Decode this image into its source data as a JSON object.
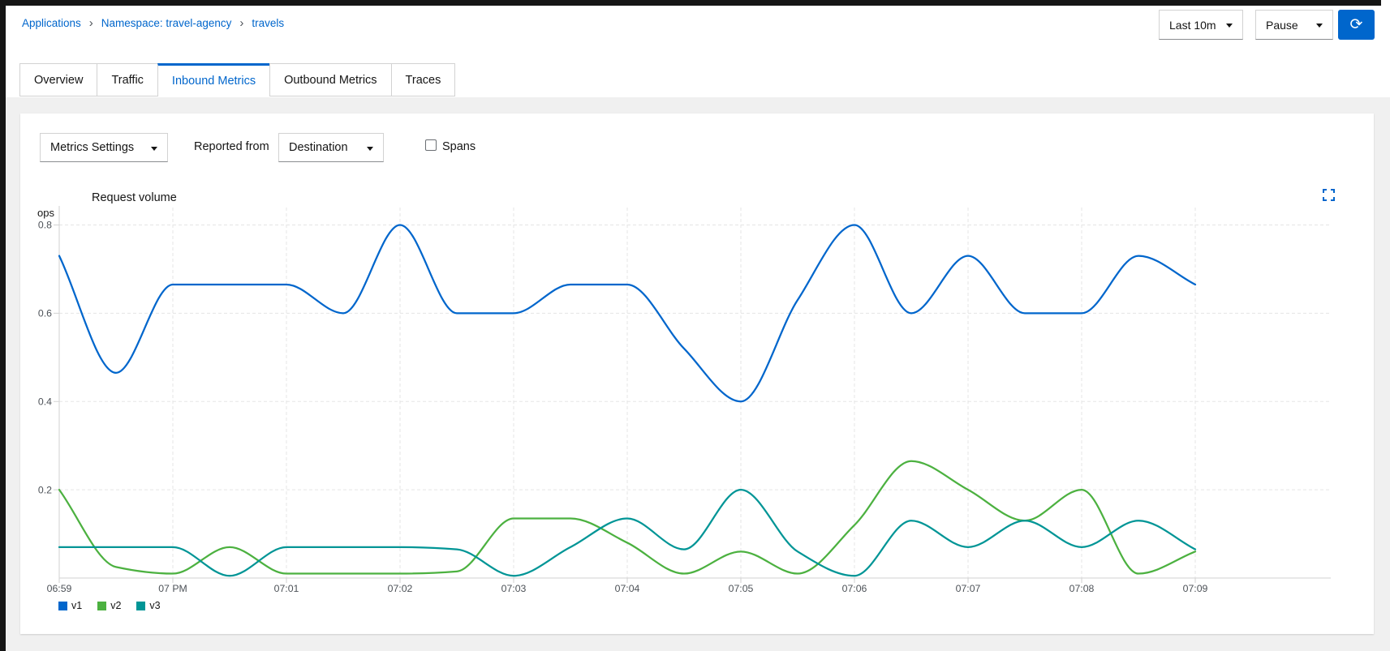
{
  "breadcrumb": {
    "separator": "›",
    "items": [
      {
        "label": "Applications"
      },
      {
        "label": "Namespace: travel-agency"
      },
      {
        "label": "travels"
      }
    ]
  },
  "toolbar": {
    "duration_value": "Last 10m",
    "refresh_mode_value": "Pause"
  },
  "tabs": [
    {
      "label": "Overview",
      "active": false
    },
    {
      "label": "Traffic",
      "active": false
    },
    {
      "label": "Inbound Metrics",
      "active": true
    },
    {
      "label": "Outbound Metrics",
      "active": false
    },
    {
      "label": "Traces",
      "active": false
    }
  ],
  "controls": {
    "metrics_settings_label": "Metrics Settings",
    "reported_from_label": "Reported from",
    "reporter_value": "Destination",
    "spans_label": "Spans",
    "spans_checked": false
  },
  "chart_data": {
    "type": "line",
    "title": "Request volume",
    "y_unit": "ops",
    "x_ticks": [
      "06:59",
      "07 PM",
      "07:01",
      "07:02",
      "07:03",
      "07:04",
      "07:05",
      "07:06",
      "07:07",
      "07:08",
      "07:09"
    ],
    "y_ticks": [
      0.2,
      0.4,
      0.6,
      0.8
    ],
    "ylim": [
      0,
      0.8
    ],
    "x_minutes_range": [
      0,
      10
    ],
    "grid": "dashed",
    "legend_position": "bottom-left",
    "series": [
      {
        "name": "v1",
        "color": "#0066cc",
        "points": [
          [
            0,
            0.73
          ],
          [
            0.5,
            0.465
          ],
          [
            1,
            0.665
          ],
          [
            1.5,
            0.665
          ],
          [
            2,
            0.665
          ],
          [
            2.5,
            0.6
          ],
          [
            3,
            0.8
          ],
          [
            3.5,
            0.6
          ],
          [
            4,
            0.6
          ],
          [
            4.5,
            0.665
          ],
          [
            5,
            0.665
          ],
          [
            5.5,
            0.52
          ],
          [
            6,
            0.4
          ],
          [
            6.5,
            0.63
          ],
          [
            7,
            0.8
          ],
          [
            7.5,
            0.6
          ],
          [
            8,
            0.73
          ],
          [
            8.5,
            0.6
          ],
          [
            9,
            0.6
          ],
          [
            9.5,
            0.73
          ],
          [
            10,
            0.665
          ]
        ]
      },
      {
        "name": "v2",
        "color": "#4cb140",
        "points": [
          [
            0,
            0.2
          ],
          [
            0.5,
            0.025
          ],
          [
            1,
            0.01
          ],
          [
            1.5,
            0.07
          ],
          [
            2,
            0.01
          ],
          [
            2.5,
            0.01
          ],
          [
            3,
            0.01
          ],
          [
            3.5,
            0.015
          ],
          [
            4,
            0.135
          ],
          [
            4.5,
            0.135
          ],
          [
            5,
            0.08
          ],
          [
            5.5,
            0.01
          ],
          [
            6,
            0.06
          ],
          [
            6.5,
            0.01
          ],
          [
            7,
            0.12
          ],
          [
            7.5,
            0.265
          ],
          [
            8,
            0.2
          ],
          [
            8.5,
            0.13
          ],
          [
            9,
            0.2
          ],
          [
            9.5,
            0.01
          ],
          [
            10,
            0.06
          ]
        ]
      },
      {
        "name": "v3",
        "color": "#009596",
        "points": [
          [
            0,
            0.07
          ],
          [
            0.5,
            0.07
          ],
          [
            1,
            0.07
          ],
          [
            1.5,
            0.005
          ],
          [
            2,
            0.07
          ],
          [
            2.5,
            0.07
          ],
          [
            3,
            0.07
          ],
          [
            3.5,
            0.065
          ],
          [
            4,
            0.005
          ],
          [
            4.5,
            0.07
          ],
          [
            5,
            0.135
          ],
          [
            5.5,
            0.065
          ],
          [
            6,
            0.2
          ],
          [
            6.5,
            0.06
          ],
          [
            7,
            0.005
          ],
          [
            7.5,
            0.13
          ],
          [
            8,
            0.07
          ],
          [
            8.5,
            0.13
          ],
          [
            9,
            0.07
          ],
          [
            9.5,
            0.13
          ],
          [
            10,
            0.065
          ]
        ]
      }
    ]
  }
}
